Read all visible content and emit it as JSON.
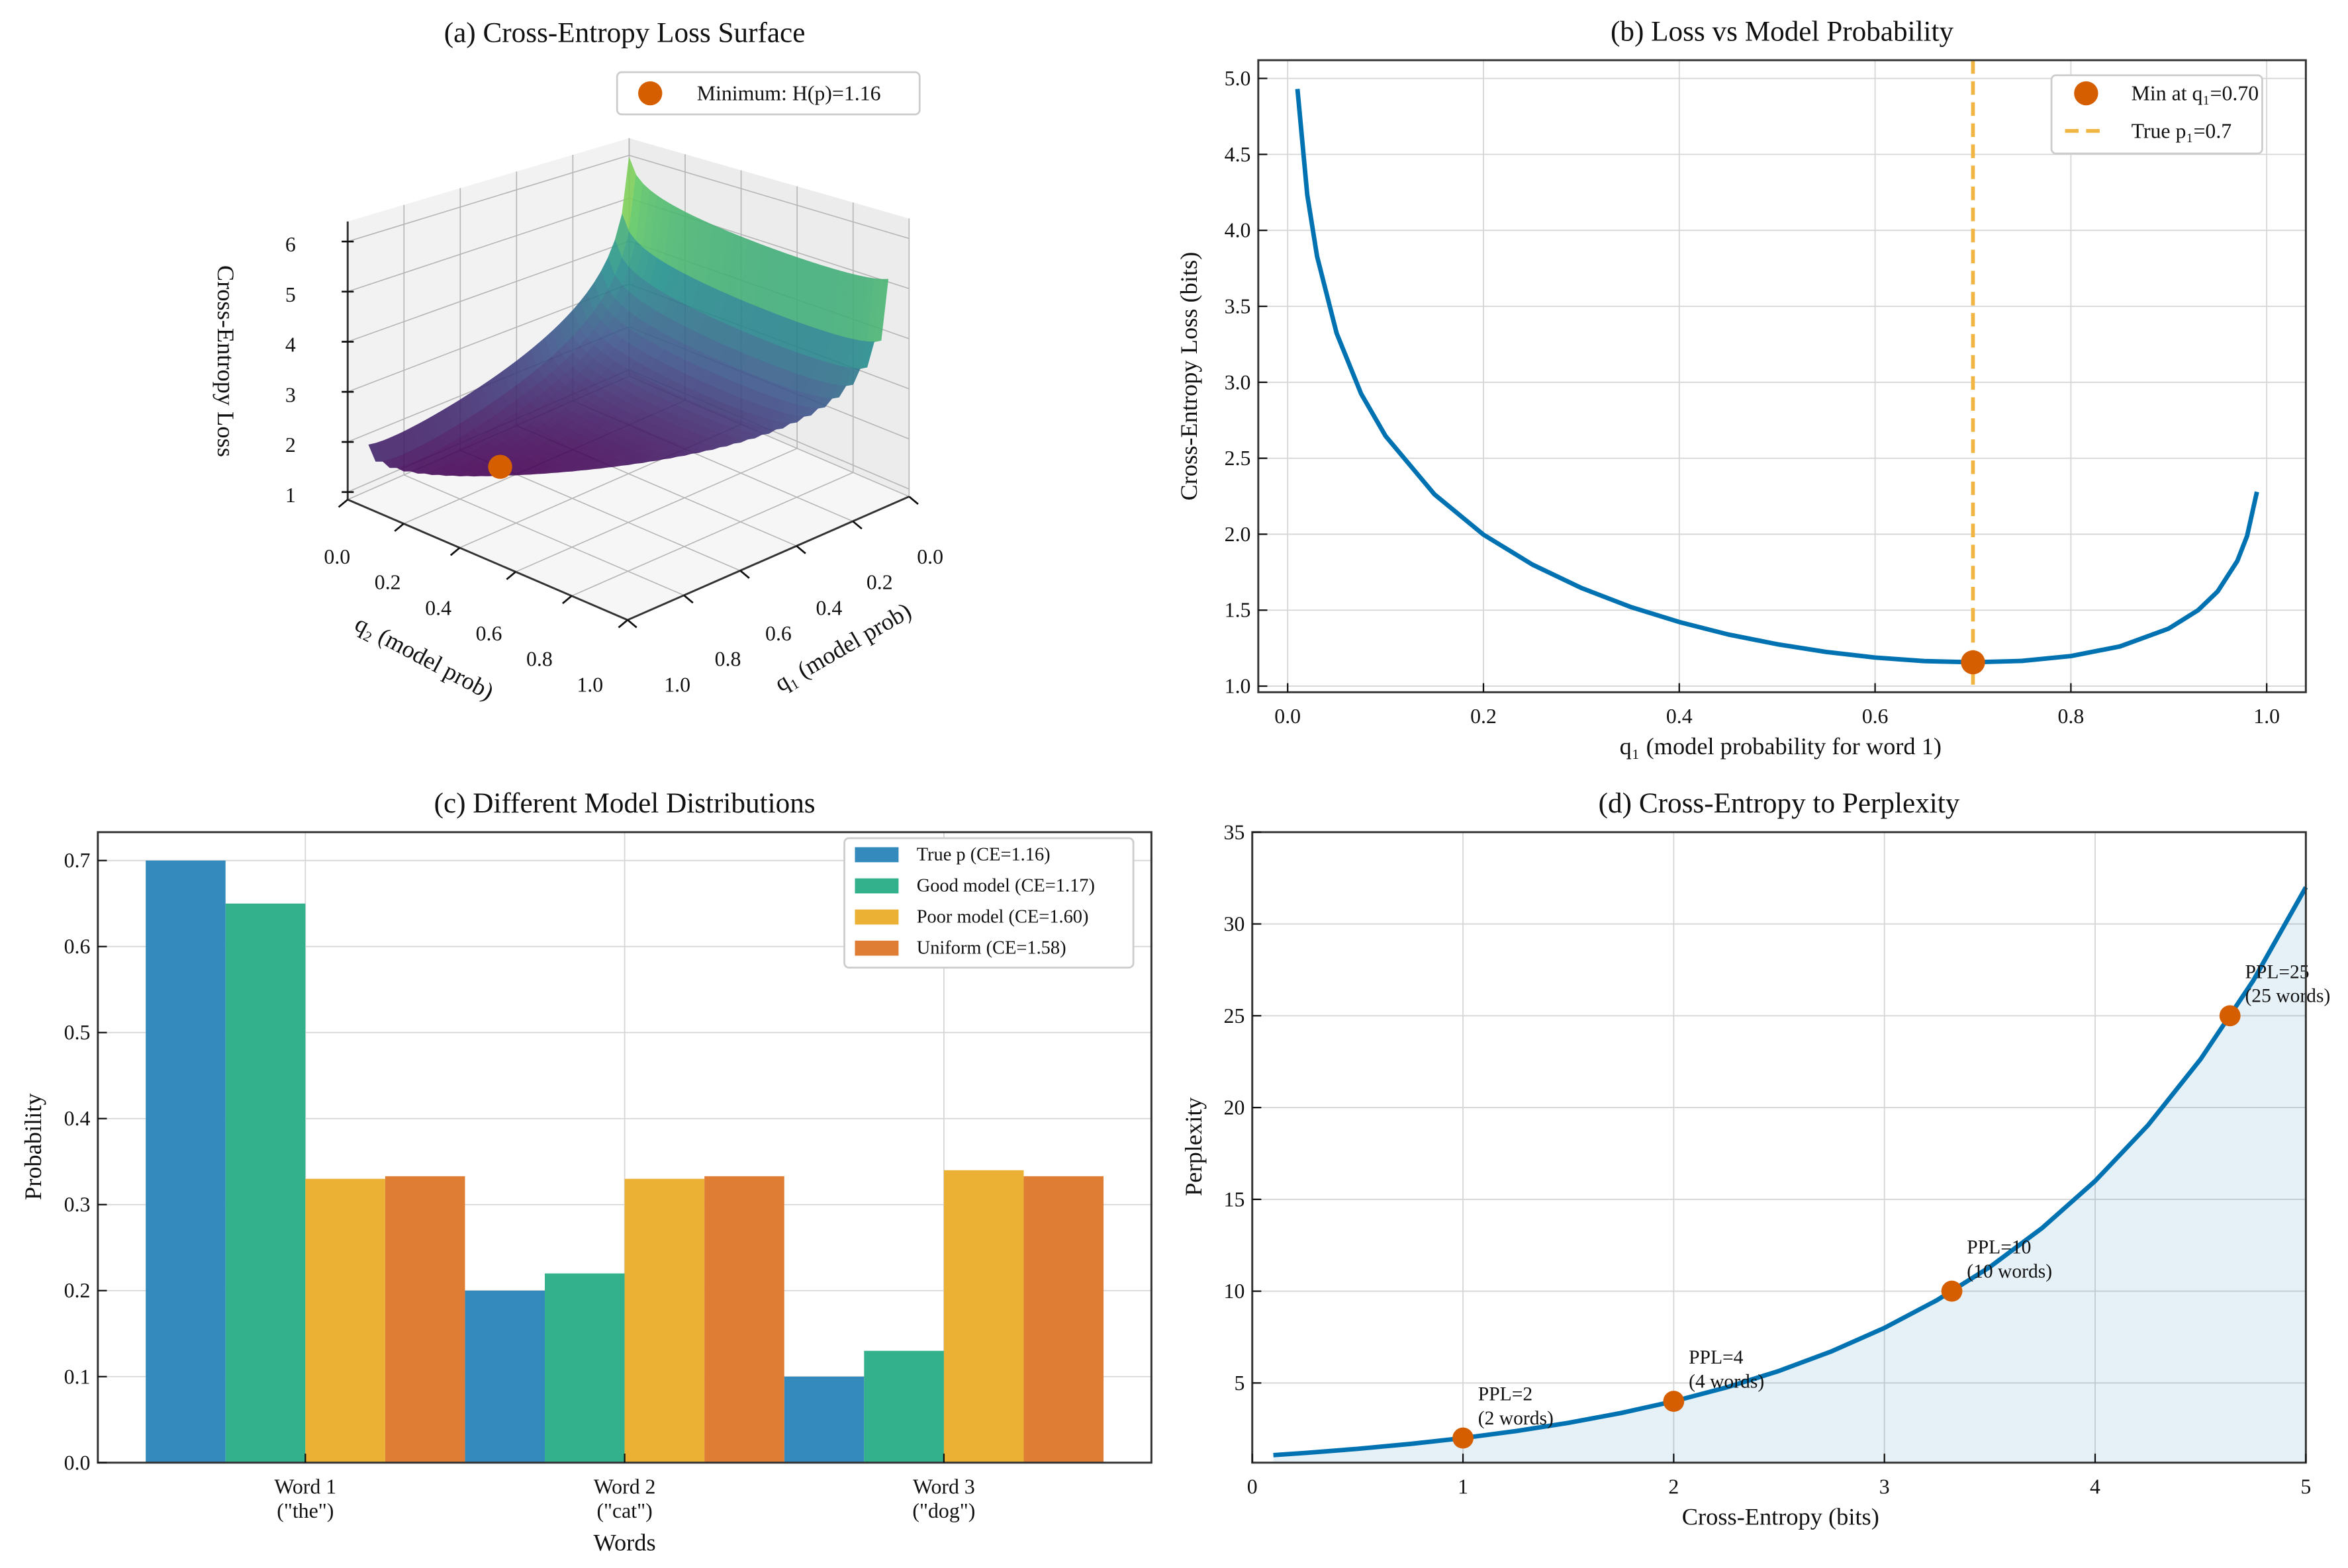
{
  "colors": {
    "line": "#0072b2",
    "marker": "#d55e00",
    "true_line": "#f0b542",
    "grid": "#d6d6d6",
    "spine": "#333333",
    "pane": "#f2f2f2",
    "pane_grid": "#b5b5b5",
    "fill": "#0072b2",
    "bars": [
      "#348abd",
      "#33b08c",
      "#ebb134",
      "#de7d33"
    ],
    "viridis": [
      "#440154",
      "#3b528b",
      "#21918c",
      "#5ec962",
      "#fde725"
    ]
  },
  "chart_data": [
    {
      "type": "surface",
      "title": "(a) Cross-Entropy Loss Surface",
      "xlabel": "q₁ (model prob)",
      "ylabel": "q₂ (model prob)",
      "zlabel": "Cross-Entropy Loss",
      "colormap": "viridis",
      "true_p": [
        0.7,
        0.2,
        0.1
      ],
      "xticks": [
        0,
        0.2,
        0.4,
        0.6,
        0.8,
        1.0
      ],
      "xtick_labels": [
        "0.0",
        "0.2",
        "0.4",
        "0.6",
        "0.8",
        "1.0"
      ],
      "yticks": [
        0,
        0.2,
        0.4,
        0.6,
        0.8,
        1.0
      ],
      "ytick_labels": [
        "0.0",
        "0.2",
        "0.4",
        "0.6",
        "0.8",
        "1.0"
      ],
      "zticks": [
        1,
        2,
        3,
        4,
        5,
        6
      ],
      "ztick_labels": [
        "1",
        "2",
        "3",
        "4",
        "5",
        "6"
      ],
      "zlim": [
        0.85,
        6.4
      ],
      "minimum": {
        "q1": 0.7,
        "q2": 0.2,
        "loss": 1.16
      },
      "legend": {
        "placement": "top-right",
        "entries": [
          {
            "label": "Minimum: H(p)=1.16",
            "marker": "circle"
          }
        ]
      }
    },
    {
      "type": "line",
      "title": "(b) Loss vs Model Probability",
      "xlabel": "q₁ (model probability for word 1)",
      "ylabel": "Cross-Entropy Loss (bits)",
      "xlim": [
        -0.03,
        1.04
      ],
      "ylim": [
        0.96,
        5.12
      ],
      "grid": true,
      "xticks": [
        0,
        0.2,
        0.4,
        0.6,
        0.8,
        1.0
      ],
      "xtick_labels": [
        "0.0",
        "0.2",
        "0.4",
        "0.6",
        "0.8",
        "1.0"
      ],
      "yticks": [
        1,
        1.5,
        2,
        2.5,
        3,
        3.5,
        4,
        4.5,
        5
      ],
      "ytick_labels": [
        "1.0",
        "1.5",
        "2.0",
        "2.5",
        "3.0",
        "3.5",
        "4.0",
        "4.5",
        "5.0"
      ],
      "x": [
        0.01,
        0.02,
        0.03,
        0.05,
        0.075,
        0.1,
        0.15,
        0.2,
        0.25,
        0.3,
        0.35,
        0.4,
        0.45,
        0.5,
        0.55,
        0.6,
        0.65,
        0.7,
        0.75,
        0.8,
        0.85,
        0.9,
        0.93,
        0.95,
        0.97,
        0.98,
        0.99
      ],
      "y": [
        4.931,
        4.235,
        3.83,
        3.323,
        2.925,
        2.646,
        2.262,
        1.997,
        1.8,
        1.646,
        1.522,
        1.422,
        1.34,
        1.276,
        1.225,
        1.188,
        1.165,
        1.157,
        1.166,
        1.198,
        1.261,
        1.379,
        1.5,
        1.624,
        1.824,
        1.989,
        2.279
      ],
      "minimum": {
        "x": 0.7,
        "y": 1.157
      },
      "vline": {
        "x": 0.7,
        "style": "dashed"
      },
      "legend": {
        "placement": "top-right",
        "entries": [
          {
            "label": "Min at q₁=0.70",
            "marker": "circle"
          },
          {
            "label": "True p₁=0.7",
            "marker": "dashed-line"
          }
        ]
      }
    },
    {
      "type": "bar",
      "title": "(c) Different Model Distributions",
      "xlabel": "Words",
      "ylabel": "Probability",
      "categories": [
        [
          "Word 1",
          "(\"the\")"
        ],
        [
          "Word 2",
          "(\"cat\")"
        ],
        [
          "Word 3",
          "(\"dog\")"
        ]
      ],
      "ylim": [
        0,
        0.733
      ],
      "xlim": [
        -0.65,
        2.65
      ],
      "grid": true,
      "yticks": [
        0,
        0.1,
        0.2,
        0.3,
        0.4,
        0.5,
        0.6,
        0.7
      ],
      "ytick_labels": [
        "0.0",
        "0.1",
        "0.2",
        "0.3",
        "0.4",
        "0.5",
        "0.6",
        "0.7"
      ],
      "series": [
        {
          "name": "True p (CE=1.16)",
          "values": [
            0.7,
            0.2,
            0.1
          ]
        },
        {
          "name": "Good model (CE=1.17)",
          "values": [
            0.65,
            0.22,
            0.13
          ]
        },
        {
          "name": "Poor model (CE=1.60)",
          "values": [
            0.33,
            0.33,
            0.34
          ]
        },
        {
          "name": "Uniform (CE=1.58)",
          "values": [
            0.333,
            0.333,
            0.333
          ]
        }
      ],
      "legend": {
        "placement": "top-right"
      }
    },
    {
      "type": "area",
      "title": "(d) Cross-Entropy to Perplexity",
      "xlabel": "Cross-Entropy (bits)",
      "ylabel": "Perplexity",
      "xlim": [
        0,
        5
      ],
      "ylim": [
        0.66,
        35
      ],
      "grid": true,
      "xticks": [
        0,
        1,
        2,
        3,
        4,
        5
      ],
      "xtick_labels": [
        "0",
        "1",
        "2",
        "3",
        "4",
        "5"
      ],
      "yticks": [
        5,
        10,
        15,
        20,
        25,
        30,
        35
      ],
      "ytick_labels": [
        "5",
        "10",
        "15",
        "20",
        "25",
        "30",
        "35"
      ],
      "x": [
        0.1,
        0.25,
        0.5,
        0.75,
        1,
        1.25,
        1.5,
        1.75,
        2,
        2.25,
        2.5,
        2.75,
        3,
        3.25,
        3.5,
        3.75,
        4,
        4.25,
        4.5,
        4.75,
        5
      ],
      "y": [
        1.072,
        1.189,
        1.414,
        1.682,
        2,
        2.378,
        2.828,
        3.364,
        4,
        4.757,
        5.657,
        6.727,
        8,
        9.514,
        11.314,
        13.454,
        16,
        19.027,
        22.627,
        26.909,
        32
      ],
      "points": [
        {
          "x": 1,
          "y": 2,
          "label": [
            "PPL=2",
            "(2 words)"
          ]
        },
        {
          "x": 2,
          "y": 4,
          "label": [
            "PPL=4",
            "(4 words)"
          ]
        },
        {
          "x": 3.32,
          "y": 10,
          "label": [
            "PPL=10",
            "(10 words)"
          ]
        },
        {
          "x": 4.64,
          "y": 25,
          "label": [
            "PPL=25",
            "(25 words)"
          ]
        }
      ]
    }
  ]
}
